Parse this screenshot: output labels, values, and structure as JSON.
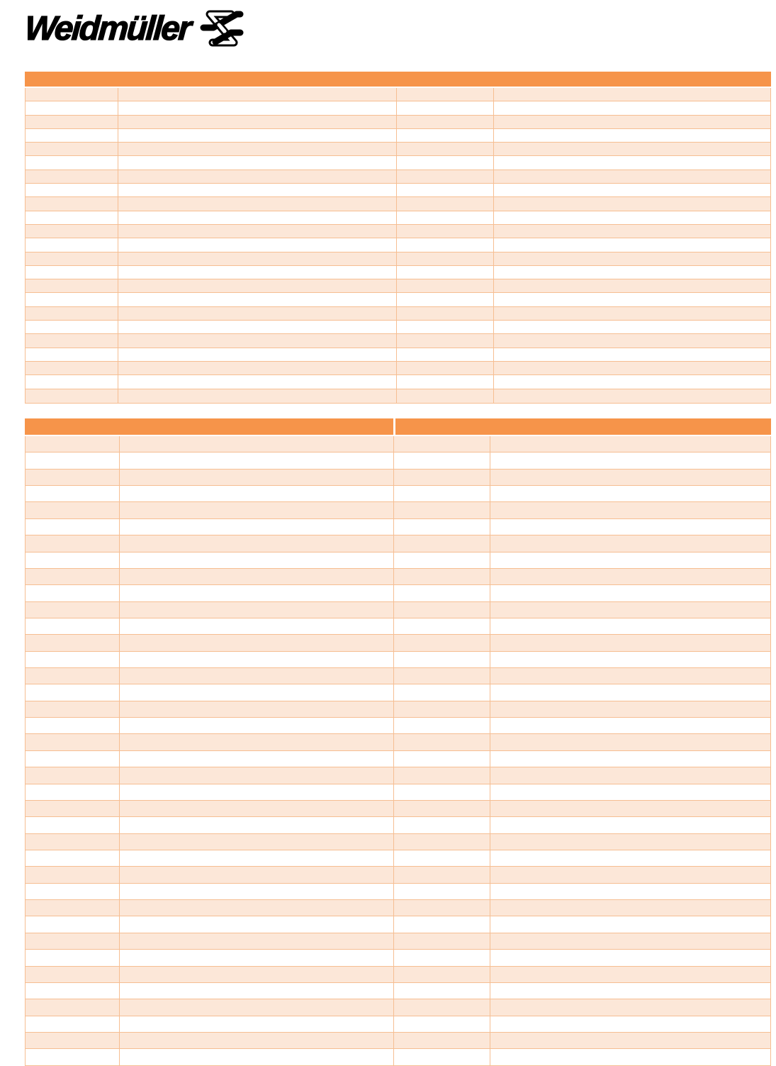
{
  "logo": {
    "text": "Weidmüller",
    "mark_icon": "weidmueller-mark"
  },
  "colors": {
    "header_orange": "#F6944A",
    "row_light": "#FCE7D8",
    "row_white": "#FFFFFF",
    "border_orange": "#F6BE92",
    "page_background": "#FFFFFF",
    "logo_black": "#000000"
  },
  "table1": {
    "header_label": "",
    "columns": 4,
    "rows": 23,
    "row_values": []
  },
  "table2": {
    "header_left_label": "",
    "header_right_label": "",
    "columns": 4,
    "rows": 38,
    "row_values": []
  }
}
